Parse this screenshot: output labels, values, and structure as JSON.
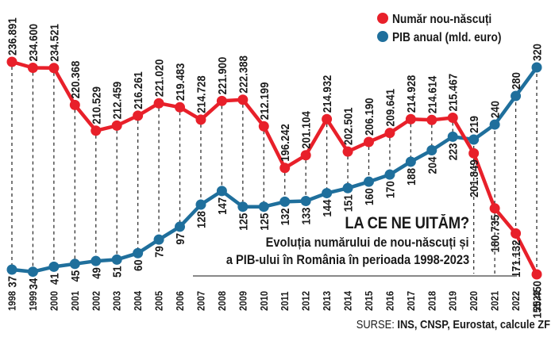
{
  "chart_data": {
    "type": "line",
    "title": "LA CE NE UITĂM?",
    "subtitle_line1": "Evoluția numărului de nou-născuți și",
    "subtitle_line2": "a PIB-ului în România în perioada 1998-2023",
    "xlabel": "",
    "ylabel": "",
    "legend_position": "top-right",
    "grid": "vertical dashed lines at each year",
    "x": [
      "1998",
      "1999",
      "2000",
      "2001",
      "2002",
      "2003",
      "2004",
      "2005",
      "2006",
      "2007",
      "2008",
      "2009",
      "2010",
      "2011",
      "2012",
      "2013",
      "2014",
      "2015",
      "2016",
      "2017",
      "2018",
      "2019",
      "2020",
      "2021",
      "2022",
      "2023"
    ],
    "series": [
      {
        "name": "Număr nou-născuți",
        "color": "#e8202a",
        "values": [
          236891,
          234600,
          234521,
          220368,
          210529,
          212459,
          216261,
          221020,
          219483,
          214728,
          221900,
          222388,
          212199,
          196242,
          201104,
          214932,
          202501,
          206190,
          209641,
          214928,
          214614,
          215467,
          201849,
          180735,
          171132,
          155450
        ],
        "labels": [
          "236.891",
          "234.600",
          "234.521",
          "220.368",
          "210.529",
          "212.459",
          "216.261",
          "221.020",
          "219.483",
          "214.728",
          "221.900",
          "222.388",
          "212.199",
          "196.242",
          "201.104",
          "214.932",
          "202.501",
          "206.190",
          "209.641",
          "214.928",
          "214.614",
          "215.467",
          "201.849",
          "180.735",
          "171.132",
          "155.450"
        ]
      },
      {
        "name": "PIB anual (mld. euro)",
        "color": "#1f6f9c",
        "values": [
          37,
          34,
          41,
          45,
          49,
          51,
          60,
          79,
          97,
          128,
          147,
          125,
          125,
          132,
          133,
          144,
          151,
          160,
          170,
          188,
          204,
          223,
          219,
          240,
          280,
          320
        ],
        "labels": [
          "37",
          "34",
          "41",
          "45",
          "49",
          "51",
          "60",
          "79",
          "97",
          "128",
          "147",
          "125",
          "125",
          "132",
          "133",
          "144",
          "151",
          "160",
          "170",
          "188",
          "204",
          "223",
          "219",
          "240",
          "280",
          "320"
        ]
      }
    ]
  },
  "legend": [
    {
      "label": "Număr nou-născuți",
      "color": "#e8202a"
    },
    {
      "label": "PIB anual (mld. euro)",
      "color": "#1f6f9c"
    }
  ],
  "annotation": {
    "title": "LA CE NE UITĂM?",
    "line1": "Evoluția numărului de nou-născuți și",
    "line2": "a PIB-ului în România în perioada 1998-2023"
  },
  "source": {
    "prefix": "SURSE: ",
    "text": "INS, CNSP, Eurostat, calcule ZF"
  }
}
